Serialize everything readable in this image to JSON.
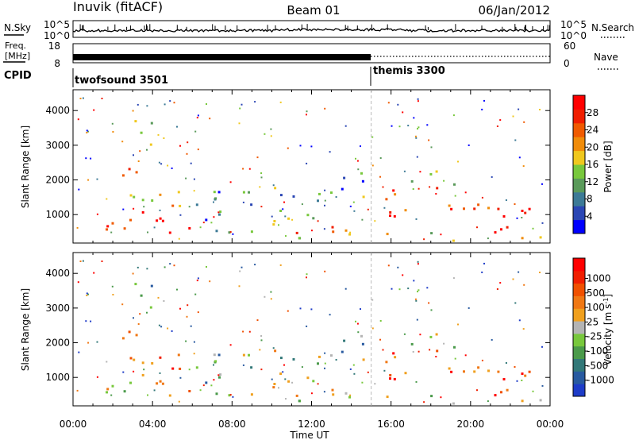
{
  "header": {
    "station": "Inuvik (fitACF)",
    "beam": "Beam 01",
    "date": "06/Jan/2012"
  },
  "panels": {
    "nsky": {
      "label": "N.Sky",
      "ticks": [
        "10^5",
        "10^0"
      ]
    },
    "freq": {
      "label_lines": [
        "Freq.",
        "[MHz]"
      ],
      "ticks": [
        "18",
        "8"
      ]
    },
    "nsearch": {
      "label": "N.Search",
      "ticks": [
        "10^5",
        "10^0"
      ]
    },
    "nave": {
      "label": "Nave",
      "ticks": [
        "60",
        "0"
      ]
    },
    "cpid": {
      "label": "CPID",
      "programs": [
        {
          "name": "twofsound 3501",
          "start_hour": 0,
          "end_hour": 15
        },
        {
          "name": "themis 3300",
          "start_hour": 15,
          "end_hour": 24
        }
      ]
    }
  },
  "chart_data": [
    {
      "type": "heatmap",
      "panel": "power",
      "xlabel": "",
      "ylabel": "Slant Range [km]",
      "x_ticks": [
        "00:00",
        "04:00",
        "08:00",
        "12:00",
        "16:00",
        "20:00",
        "00:00"
      ],
      "xlim_hours": [
        0,
        24
      ],
      "ylim": [
        180,
        4600
      ],
      "y_ticks": [
        1000,
        2000,
        3000,
        4000
      ],
      "colorbar": {
        "label": "Power [dB]",
        "ticks": [
          "4",
          "8",
          "12",
          "16",
          "20",
          "24",
          "28"
        ],
        "colors": [
          "#0000ff",
          "#2a46b4",
          "#3c7a96",
          "#5a9a5a",
          "#78c83c",
          "#f0c81e",
          "#f08c0a",
          "#f05a00",
          "#f01e00",
          "#ff0000"
        ]
      },
      "echo_regions": [
        {
          "t0": 0.0,
          "t1": 6.0,
          "r0": 500,
          "r1": 1200,
          "level": 0.95
        },
        {
          "t0": 2.0,
          "t1": 6.5,
          "r0": 1200,
          "r1": 1900,
          "level": 0.55
        },
        {
          "t0": 1.5,
          "t1": 3.2,
          "r0": 2000,
          "r1": 2600,
          "level": 0.75
        },
        {
          "t0": 3.0,
          "t1": 5.0,
          "r0": 3000,
          "r1": 3800,
          "level": 0.45
        },
        {
          "t0": 6.0,
          "t1": 9.0,
          "r0": 400,
          "r1": 2000,
          "level": 0.25
        },
        {
          "t0": 8.5,
          "t1": 12.5,
          "r0": 300,
          "r1": 1800,
          "level": 0.35
        },
        {
          "t0": 10.5,
          "t1": 15.0,
          "r0": 250,
          "r1": 800,
          "level": 0.65
        },
        {
          "t0": 12.0,
          "t1": 14.8,
          "r0": 1500,
          "r1": 2300,
          "level": 0.3
        },
        {
          "t0": 15.3,
          "t1": 21.0,
          "r0": 900,
          "r1": 1800,
          "level": 0.85
        },
        {
          "t0": 20.0,
          "t1": 23.8,
          "r0": 400,
          "r1": 1300,
          "level": 0.95
        },
        {
          "t0": 15.5,
          "t1": 23.5,
          "r0": 250,
          "r1": 500,
          "level": 0.5
        },
        {
          "t0": 17.0,
          "t1": 20.0,
          "r0": 1800,
          "r1": 2300,
          "level": 0.5
        }
      ]
    },
    {
      "type": "heatmap",
      "panel": "velocity",
      "xlabel": "Time UT",
      "ylabel": "Slant Range [km]",
      "x_ticks": [
        "00:00",
        "04:00",
        "08:00",
        "12:00",
        "16:00",
        "20:00",
        "00:00"
      ],
      "xlim_hours": [
        0,
        24
      ],
      "ylim": [
        180,
        4600
      ],
      "y_ticks": [
        1000,
        2000,
        3000,
        4000
      ],
      "colorbar": {
        "label": "Velocity [m s^-1]",
        "ticks": [
          "1000",
          "500",
          "100",
          "25",
          "-25",
          "-100",
          "-500",
          "-1000"
        ],
        "colors": [
          "#1e3cc8",
          "#285aa0",
          "#327878",
          "#4a9a4a",
          "#78c83c",
          "#b4b4b4",
          "#f0a01e",
          "#f07814",
          "#f05000",
          "#f01e00",
          "#ff0000"
        ]
      },
      "echo_regions": [
        {
          "t0": 0.0,
          "t1": 6.0,
          "r0": 500,
          "r1": 1200,
          "level": 0.55
        },
        {
          "t0": 2.0,
          "t1": 6.5,
          "r0": 1200,
          "r1": 1900,
          "level": 0.75
        },
        {
          "t0": 1.5,
          "t1": 3.2,
          "r0": 2000,
          "r1": 2600,
          "level": 0.65
        },
        {
          "t0": 3.0,
          "t1": 5.0,
          "r0": 3000,
          "r1": 3800,
          "level": 0.3
        },
        {
          "t0": 6.0,
          "t1": 9.0,
          "r0": 400,
          "r1": 2000,
          "level": 0.35
        },
        {
          "t0": 8.5,
          "t1": 12.5,
          "r0": 300,
          "r1": 1800,
          "level": 0.45
        },
        {
          "t0": 10.5,
          "t1": 15.0,
          "r0": 250,
          "r1": 800,
          "level": 0.5
        },
        {
          "t0": 12.0,
          "t1": 14.8,
          "r0": 1500,
          "r1": 2300,
          "level": 0.35
        },
        {
          "t0": 15.3,
          "t1": 21.0,
          "r0": 900,
          "r1": 1800,
          "level": 0.8
        },
        {
          "t0": 20.0,
          "t1": 23.8,
          "r0": 400,
          "r1": 1300,
          "level": 0.75
        },
        {
          "t0": 15.5,
          "t1": 23.5,
          "r0": 250,
          "r1": 500,
          "level": 0.45
        },
        {
          "t0": 17.0,
          "t1": 20.0,
          "r0": 1800,
          "r1": 2300,
          "level": 0.5
        }
      ]
    }
  ]
}
